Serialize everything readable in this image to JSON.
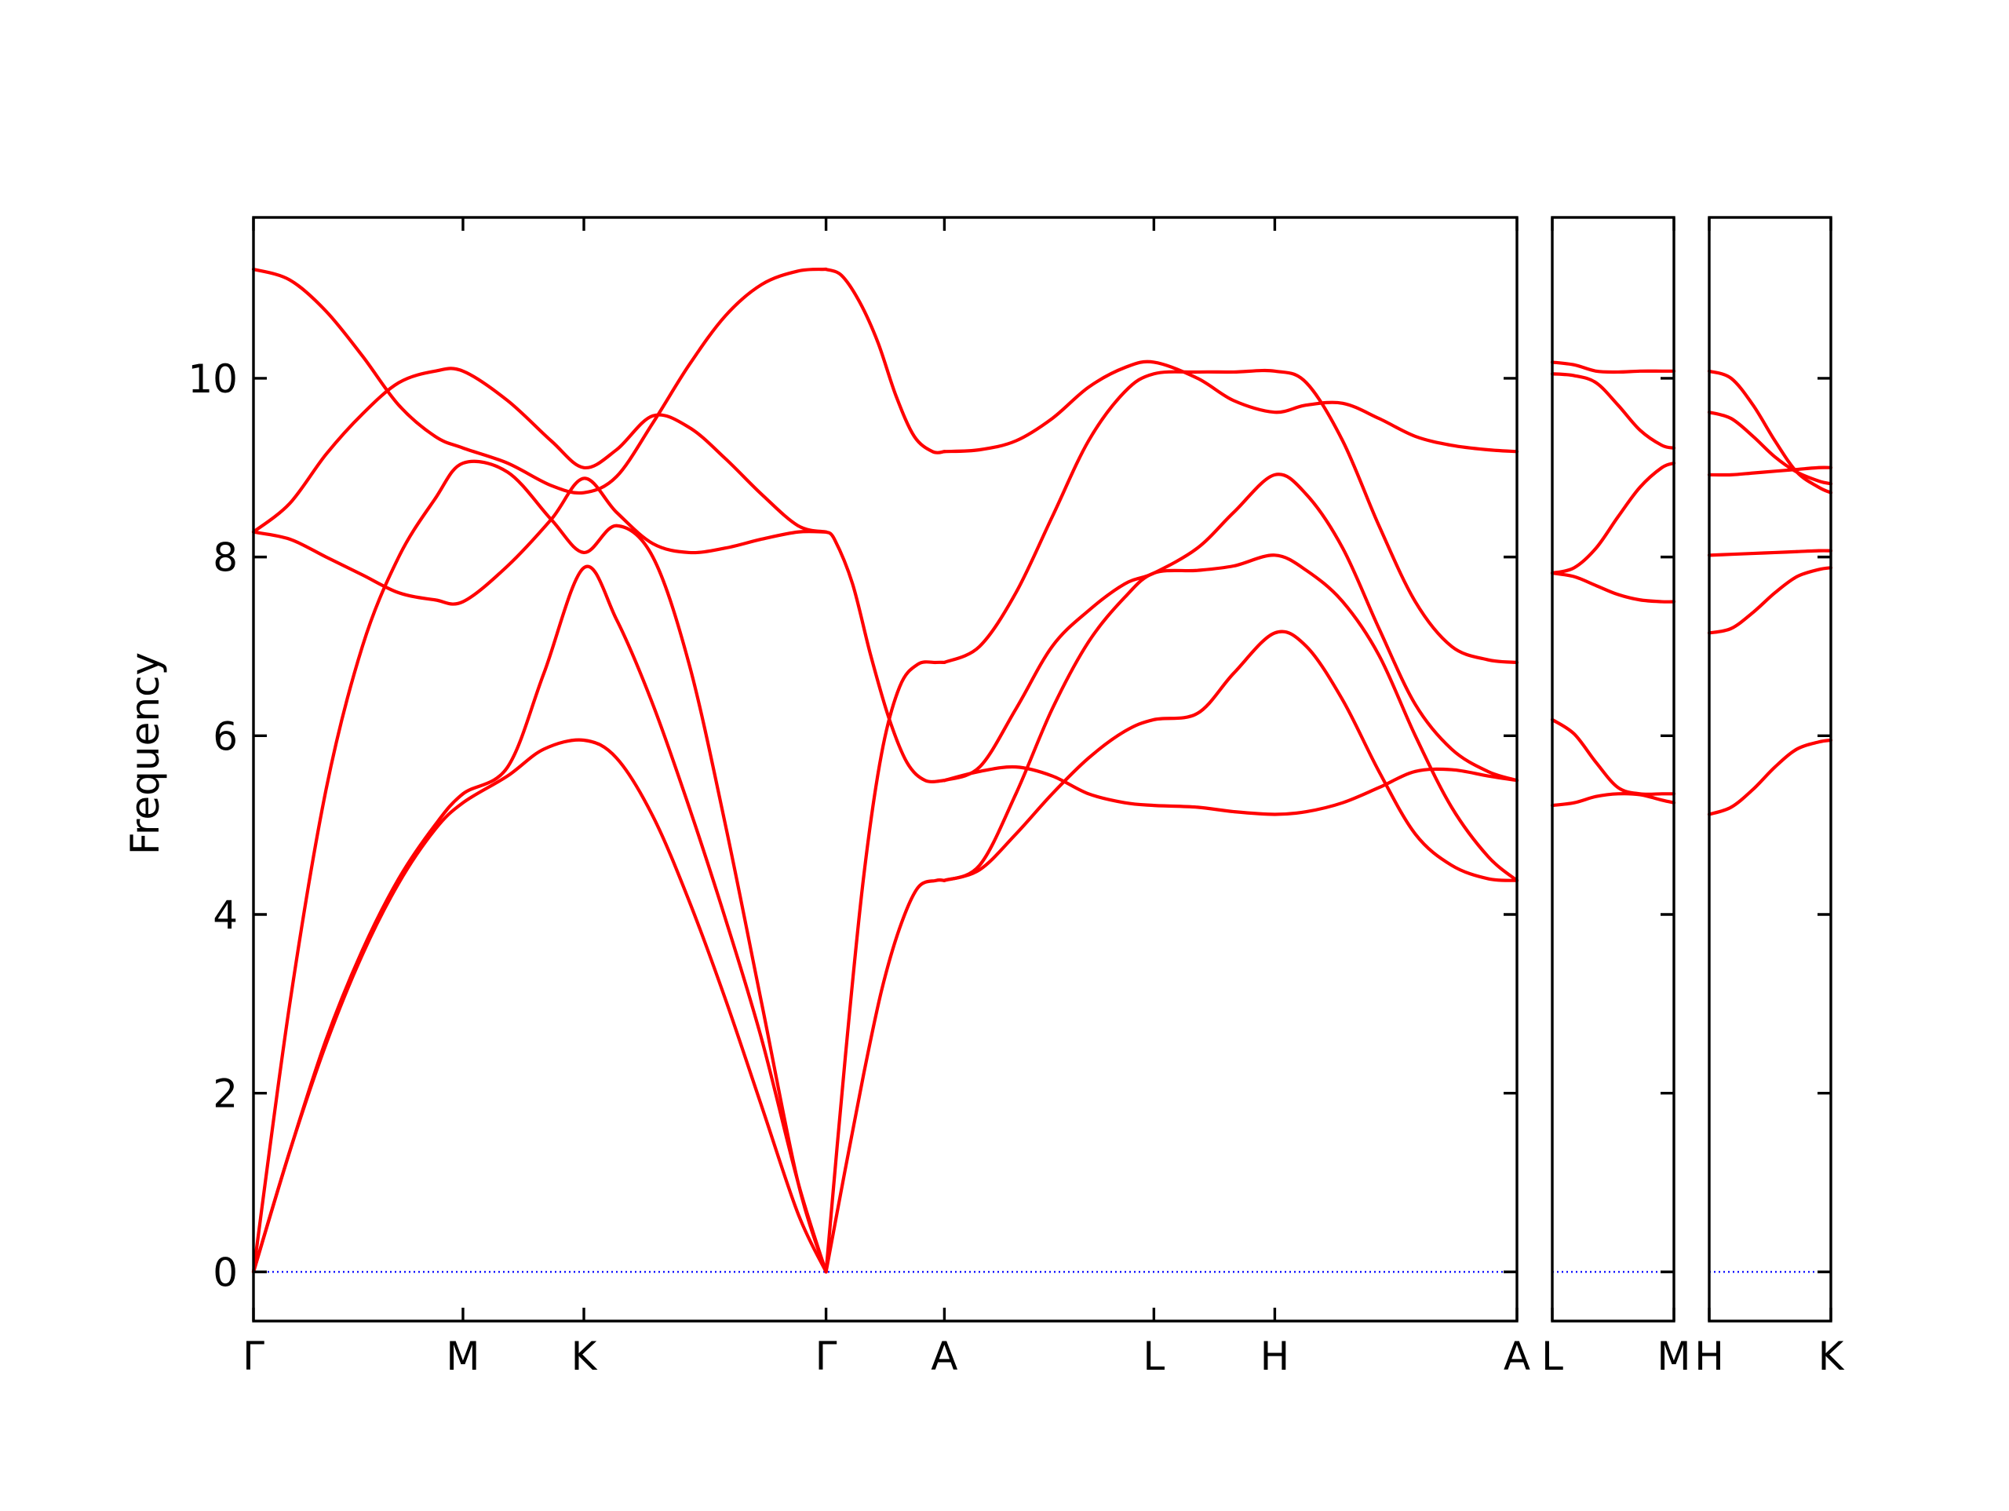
{
  "chart_data": {
    "type": "line",
    "title": "",
    "ylabel": "Frequency",
    "ylim": [
      -0.55,
      11.8
    ],
    "yticks": [
      0,
      2,
      4,
      6,
      8,
      10
    ],
    "grid": false,
    "colors": {
      "bands": "#ff0000",
      "zero_line": "#0000ff",
      "axes": "#000000"
    },
    "panels": [
      {
        "labels": [
          "Γ",
          "M",
          "K",
          "Γ",
          "A",
          "L",
          "H",
          "A"
        ],
        "label_positions": [
          0,
          0.577,
          0.91,
          1.577,
          1.903,
          2.48,
          2.813,
          3.48
        ],
        "series": [
          {
            "x": [
              0,
              0.1,
              0.2,
              0.3,
              0.4,
              0.5,
              0.577,
              0.7,
              0.8,
              0.91,
              1.0,
              1.1,
              1.2,
              1.3,
              1.4,
              1.5,
              1.577
            ],
            "y": [
              0,
              1.35,
              2.55,
              3.55,
              4.35,
              4.95,
              5.25,
              5.55,
              5.85,
              5.95,
              5.75,
              5.1,
              4.15,
              3.05,
              1.85,
              0.65,
              0
            ]
          },
          {
            "x": [
              0,
              0.1,
              0.2,
              0.3,
              0.4,
              0.5,
              0.577,
              0.7,
              0.8,
              0.91,
              1.0,
              1.1,
              1.2,
              1.3,
              1.4,
              1.5,
              1.577
            ],
            "y": [
              0,
              1.35,
              2.6,
              3.6,
              4.4,
              5.0,
              5.35,
              5.65,
              6.7,
              7.88,
              7.3,
              6.35,
              5.2,
              3.95,
              2.6,
              1.0,
              0
            ]
          },
          {
            "x": [
              0,
              0.1,
              0.2,
              0.3,
              0.4,
              0.5,
              0.577,
              0.7,
              0.82,
              0.91,
              1.0,
              1.1,
              1.2,
              1.3,
              1.4,
              1.5,
              1.577
            ],
            "y": [
              0,
              3.0,
              5.4,
              7.0,
              8.0,
              8.65,
              9.05,
              8.95,
              8.42,
              8.05,
              8.35,
              8.0,
              6.8,
              5.0,
              3.0,
              1.0,
              0
            ]
          },
          {
            "x": [
              0,
              0.1,
              0.2,
              0.3,
              0.4,
              0.5,
              0.577,
              0.7,
              0.82,
              0.91,
              1.0,
              1.1,
              1.2,
              1.3,
              1.4,
              1.5,
              1.577
            ],
            "y": [
              8.28,
              8.2,
              8.0,
              7.8,
              7.6,
              7.52,
              7.5,
              7.9,
              8.42,
              8.88,
              8.5,
              8.15,
              8.05,
              8.1,
              8.2,
              8.28,
              8.28
            ]
          },
          {
            "x": [
              0,
              0.1,
              0.2,
              0.3,
              0.4,
              0.5,
              0.577,
              0.7,
              0.82,
              0.91,
              1.0,
              1.1,
              1.2,
              1.3,
              1.4,
              1.5,
              1.577
            ],
            "y": [
              8.28,
              8.6,
              9.15,
              9.6,
              9.95,
              10.08,
              10.08,
              9.75,
              9.3,
              9.0,
              9.2,
              9.58,
              9.45,
              9.1,
              8.7,
              8.35,
              8.28
            ]
          },
          {
            "x": [
              0,
              0.1,
              0.2,
              0.3,
              0.4,
              0.5,
              0.577,
              0.7,
              0.82,
              0.91,
              1.0,
              1.1,
              1.2,
              1.3,
              1.4,
              1.5,
              1.577
            ],
            "y": [
              11.22,
              11.1,
              10.75,
              10.25,
              9.7,
              9.35,
              9.22,
              9.05,
              8.8,
              8.72,
              8.9,
              9.5,
              10.15,
              10.7,
              11.05,
              11.2,
              11.22
            ]
          },
          {
            "x": [
              1.577,
              1.63,
              1.68,
              1.73,
              1.78,
              1.83,
              1.88,
              1.903
            ],
            "y": [
              0,
              1.15,
              2.2,
              3.15,
              3.85,
              4.3,
              4.38,
              4.38
            ]
          },
          {
            "x": [
              1.577,
              1.63,
              1.68,
              1.73,
              1.78,
              1.83,
              1.88,
              1.903
            ],
            "y": [
              0,
              2.4,
              4.4,
              5.8,
              6.55,
              6.8,
              6.82,
              6.82
            ]
          },
          {
            "x": [
              1.577,
              1.6,
              1.65,
              1.7,
              1.75,
              1.8,
              1.85,
              1.903
            ],
            "y": [
              8.28,
              8.2,
              7.7,
              6.9,
              6.2,
              5.7,
              5.5,
              5.5
            ]
          },
          {
            "x": [
              1.577,
              1.62,
              1.67,
              1.72,
              1.77,
              1.82,
              1.87,
              1.903
            ],
            "y": [
              11.22,
              11.15,
              10.85,
              10.4,
              9.8,
              9.35,
              9.18,
              9.18
            ]
          },
          {
            "x": [
              1.903,
              2.0,
              2.1,
              2.2,
              2.3,
              2.4,
              2.48,
              2.6,
              2.7,
              2.813,
              2.9,
              3.0,
              3.1,
              3.2,
              3.3,
              3.4,
              3.48
            ],
            "y": [
              4.38,
              4.5,
              4.9,
              5.35,
              5.75,
              6.05,
              6.18,
              6.25,
              6.7,
              7.15,
              7.0,
              6.4,
              5.6,
              4.9,
              4.55,
              4.4,
              4.38
            ]
          },
          {
            "x": [
              1.903,
              2.0,
              2.1,
              2.2,
              2.3,
              2.4,
              2.48,
              2.6,
              2.7,
              2.813,
              2.9,
              3.0,
              3.1,
              3.2,
              3.3,
              3.4,
              3.48
            ],
            "y": [
              4.38,
              4.55,
              5.35,
              6.3,
              7.05,
              7.55,
              7.82,
              7.85,
              7.9,
              8.02,
              7.85,
              7.5,
              6.9,
              6.0,
              5.2,
              4.65,
              4.38
            ]
          },
          {
            "x": [
              1.903,
              2.0,
              2.1,
              2.2,
              2.3,
              2.4,
              2.48,
              2.6,
              2.7,
              2.813,
              2.9,
              3.0,
              3.1,
              3.2,
              3.3,
              3.4,
              3.48
            ],
            "y": [
              5.5,
              5.6,
              5.65,
              5.55,
              5.35,
              5.25,
              5.22,
              5.2,
              5.15,
              5.12,
              5.15,
              5.25,
              5.42,
              5.6,
              5.62,
              5.55,
              5.5
            ]
          },
          {
            "x": [
              1.903,
              2.0,
              2.1,
              2.2,
              2.3,
              2.4,
              2.48,
              2.6,
              2.7,
              2.813,
              2.9,
              3.0,
              3.1,
              3.2,
              3.3,
              3.4,
              3.48
            ],
            "y": [
              5.5,
              5.65,
              6.3,
              7.0,
              7.4,
              7.7,
              7.82,
              8.1,
              8.5,
              8.92,
              8.7,
              8.1,
              7.2,
              6.35,
              5.85,
              5.6,
              5.5
            ]
          },
          {
            "x": [
              1.903,
              2.0,
              2.1,
              2.2,
              2.3,
              2.4,
              2.48,
              2.6,
              2.7,
              2.813,
              2.9,
              3.0,
              3.1,
              3.2,
              3.3,
              3.4,
              3.48
            ],
            "y": [
              6.82,
              7.0,
              7.6,
              8.45,
              9.3,
              9.85,
              10.05,
              10.07,
              10.07,
              10.08,
              9.95,
              9.3,
              8.35,
              7.5,
              7.0,
              6.85,
              6.82
            ]
          },
          {
            "x": [
              1.903,
              2.0,
              2.1,
              2.2,
              2.3,
              2.4,
              2.48,
              2.6,
              2.7,
              2.813,
              2.9,
              3.0,
              3.1,
              3.2,
              3.3,
              3.4,
              3.48
            ],
            "y": [
              9.18,
              9.2,
              9.3,
              9.55,
              9.9,
              10.12,
              10.18,
              10.0,
              9.75,
              9.62,
              9.7,
              9.72,
              9.55,
              9.35,
              9.25,
              9.2,
              9.18
            ]
          }
        ]
      },
      {
        "labels": [
          "L",
          "M"
        ],
        "label_positions": [
          0,
          0.333
        ],
        "series": [
          {
            "x": [
              0,
              0.06,
              0.12,
              0.18,
              0.24,
              0.3,
              0.333
            ],
            "y": [
              6.18,
              6.02,
              5.7,
              5.42,
              5.35,
              5.35,
              5.35
            ]
          },
          {
            "x": [
              0,
              0.06,
              0.12,
              0.18,
              0.24,
              0.3,
              0.333
            ],
            "y": [
              5.22,
              5.25,
              5.32,
              5.35,
              5.34,
              5.28,
              5.25
            ]
          },
          {
            "x": [
              0,
              0.06,
              0.12,
              0.18,
              0.24,
              0.3,
              0.333
            ],
            "y": [
              7.82,
              7.78,
              7.68,
              7.58,
              7.52,
              7.5,
              7.5
            ]
          },
          {
            "x": [
              0,
              0.06,
              0.12,
              0.18,
              0.24,
              0.3,
              0.333
            ],
            "y": [
              7.82,
              7.88,
              8.1,
              8.45,
              8.78,
              9.0,
              9.05
            ]
          },
          {
            "x": [
              0,
              0.06,
              0.12,
              0.18,
              0.24,
              0.3,
              0.333
            ],
            "y": [
              10.05,
              10.03,
              9.95,
              9.7,
              9.42,
              9.25,
              9.22
            ]
          },
          {
            "x": [
              0,
              0.06,
              0.12,
              0.18,
              0.24,
              0.3,
              0.333
            ],
            "y": [
              10.18,
              10.15,
              10.08,
              10.07,
              10.08,
              10.08,
              10.08
            ]
          }
        ]
      },
      {
        "labels": [
          "H",
          "K"
        ],
        "label_positions": [
          0,
          0.333
        ],
        "series": [
          {
            "x": [
              0,
              0.06,
              0.12,
              0.18,
              0.24,
              0.3,
              0.333
            ],
            "y": [
              5.12,
              5.2,
              5.4,
              5.65,
              5.85,
              5.93,
              5.95
            ]
          },
          {
            "x": [
              0,
              0.06,
              0.12,
              0.18,
              0.24,
              0.3,
              0.333
            ],
            "y": [
              7.15,
              7.2,
              7.38,
              7.6,
              7.78,
              7.86,
              7.88
            ]
          },
          {
            "x": [
              0,
              0.06,
              0.12,
              0.18,
              0.24,
              0.3,
              0.333
            ],
            "y": [
              8.02,
              8.03,
              8.04,
              8.05,
              8.06,
              8.07,
              8.07
            ]
          },
          {
            "x": [
              0,
              0.06,
              0.12,
              0.18,
              0.24,
              0.3,
              0.333
            ],
            "y": [
              8.92,
              8.92,
              8.94,
              8.96,
              8.98,
              9.0,
              9.0
            ]
          },
          {
            "x": [
              0,
              0.06,
              0.12,
              0.18,
              0.24,
              0.3,
              0.333
            ],
            "y": [
              9.62,
              9.55,
              9.35,
              9.12,
              8.95,
              8.85,
              8.82
            ]
          },
          {
            "x": [
              0,
              0.06,
              0.12,
              0.18,
              0.24,
              0.3,
              0.333
            ],
            "y": [
              10.08,
              10.0,
              9.7,
              9.3,
              8.95,
              8.78,
              8.72
            ]
          }
        ]
      }
    ]
  }
}
